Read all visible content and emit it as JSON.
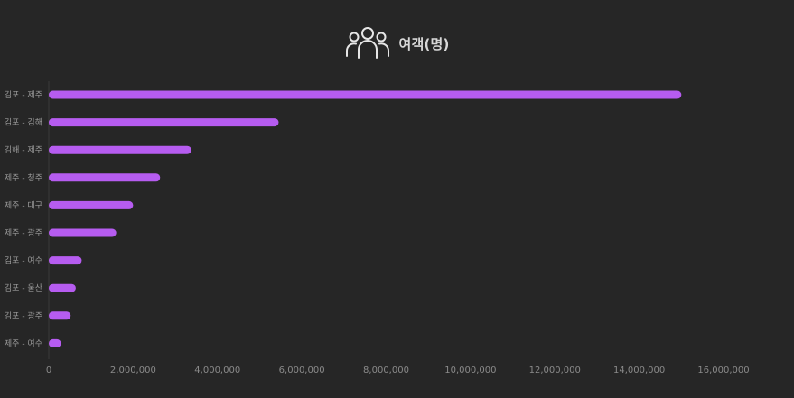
{
  "header": {
    "icon": "people-group-icon",
    "title": "여객(명)"
  },
  "colors": {
    "background": "#262626",
    "bar": "#b65cf0",
    "axis": "#3a3a3a",
    "text": "#8a8a8a"
  },
  "chart_data": {
    "type": "bar",
    "orientation": "horizontal",
    "title": "여객(명)",
    "xlabel": "",
    "ylabel": "",
    "categories": [
      "김포 - 제주",
      "김포 - 김해",
      "김해 - 제주",
      "제주 - 청주",
      "제주 - 대구",
      "제주 - 광주",
      "김포 - 여수",
      "김포 - 울산",
      "김포 - 광주",
      "제주 - 여수"
    ],
    "values": [
      15000000,
      5450000,
      3380000,
      2640000,
      2000000,
      1600000,
      780000,
      640000,
      520000,
      290000
    ],
    "xlim": [
      0,
      16000000
    ],
    "xticks": [
      0,
      2000000,
      4000000,
      6000000,
      8000000,
      10000000,
      12000000,
      14000000,
      16000000
    ],
    "xtick_labels": [
      "0",
      "2,000,000",
      "4,000,000",
      "6,000,000",
      "8,000,000",
      "10,000,000",
      "12,000,000",
      "14,000,000",
      "16,000,000"
    ],
    "grid": false,
    "legend": "none"
  }
}
